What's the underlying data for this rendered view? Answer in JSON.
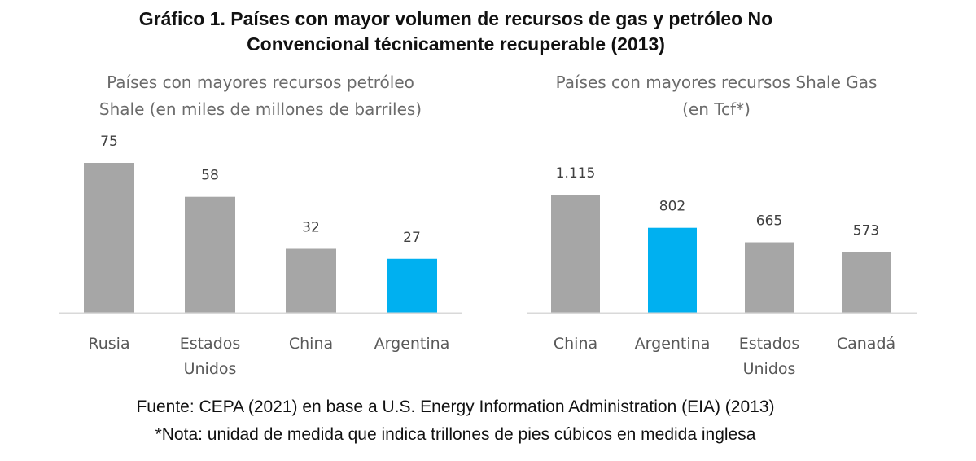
{
  "title": "Gráfico 1. Países con mayor volumen de recursos de gas y petróleo No Convencional técnicamente recuperable (2013)",
  "colors": {
    "default_bar": "#a6a6a6",
    "highlight_bar": "#00b0f0",
    "axis": "#d9d9d9"
  },
  "chart_data": [
    {
      "type": "bar",
      "title_lines": [
        "Países con mayores recursos petróleo",
        "Shale (en miles de millones de barriles)"
      ],
      "categories": [
        "Rusia",
        "Estados Unidos",
        "China",
        "Argentina"
      ],
      "category_lines": [
        [
          "Rusia"
        ],
        [
          "Estados",
          "Unidos"
        ],
        [
          "China"
        ],
        [
          "Argentina"
        ]
      ],
      "values": [
        75,
        58,
        32,
        27
      ],
      "value_labels": [
        "75",
        "58",
        "32",
        "27"
      ],
      "highlight": [
        false,
        false,
        false,
        true
      ],
      "ylim": [
        0,
        75
      ],
      "grid": false
    },
    {
      "type": "bar",
      "title_lines": [
        "Países con mayores recursos Shale Gas",
        "(en Tcf*)"
      ],
      "categories": [
        "China",
        "Argentina",
        "Estados Unidos",
        "Canadá"
      ],
      "category_lines": [
        [
          "China"
        ],
        [
          "Argentina"
        ],
        [
          "Estados",
          "Unidos"
        ],
        [
          "Canadá"
        ]
      ],
      "values": [
        1115,
        802,
        665,
        573
      ],
      "value_labels": [
        "1.115",
        "802",
        "665",
        "573"
      ],
      "highlight": [
        false,
        true,
        false,
        false
      ],
      "ylim": [
        0,
        1115
      ],
      "grid": false
    }
  ],
  "footer": {
    "source": "Fuente: CEPA (2021) en base a U.S. Energy Information Administration (EIA) (2013)",
    "note": "*Nota: unidad de medida que indica trillones de pies cúbicos en medida inglesa"
  }
}
